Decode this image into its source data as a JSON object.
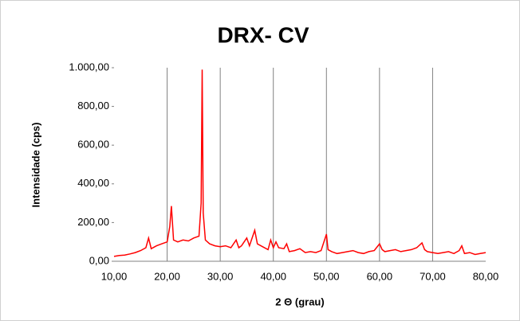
{
  "chart_data": {
    "type": "line",
    "title": "DRX- CV",
    "x_label": "2 Θ (grau)",
    "y_label": "Intensidade (cps)",
    "x": [
      10,
      11,
      12,
      13,
      14,
      15,
      16,
      16.5,
      17,
      18,
      19,
      20,
      20.5,
      20.8,
      21.2,
      22,
      23,
      24,
      25,
      26,
      26.4,
      26.6,
      26.8,
      27.2,
      28,
      29,
      30,
      31,
      32,
      33,
      33.5,
      34,
      35,
      35.5,
      36.5,
      37,
      38,
      39,
      39.5,
      40,
      40.5,
      41,
      42,
      42.5,
      43,
      44,
      45,
      46,
      47,
      48,
      49,
      50,
      50.3,
      51,
      52,
      53,
      54,
      55,
      56,
      57,
      58,
      59,
      60,
      60.5,
      61,
      62,
      63,
      64,
      65,
      66,
      67,
      68,
      68.5,
      69,
      70,
      71,
      72,
      73,
      74,
      75,
      75.5,
      76,
      77,
      78,
      79,
      80
    ],
    "series": [
      {
        "name": "DRX- CV",
        "color": "#ff0000",
        "values": [
          25,
          30,
          32,
          38,
          45,
          55,
          70,
          120,
          65,
          80,
          90,
          100,
          180,
          285,
          110,
          100,
          110,
          105,
          120,
          130,
          300,
          990,
          250,
          110,
          90,
          80,
          75,
          80,
          70,
          110,
          70,
          80,
          120,
          80,
          160,
          90,
          75,
          60,
          110,
          70,
          100,
          70,
          65,
          90,
          50,
          55,
          65,
          45,
          50,
          45,
          55,
          140,
          60,
          50,
          40,
          45,
          50,
          55,
          45,
          40,
          50,
          55,
          90,
          60,
          50,
          55,
          60,
          50,
          55,
          60,
          70,
          95,
          60,
          50,
          45,
          40,
          45,
          50,
          40,
          55,
          80,
          40,
          45,
          35,
          40,
          45
        ]
      }
    ],
    "xlim": [
      10,
      80
    ],
    "xticks": [
      {
        "value": 10,
        "label": "10,00"
      },
      {
        "value": 20,
        "label": "20,00"
      },
      {
        "value": 30,
        "label": "30,00"
      },
      {
        "value": 40,
        "label": "40,00"
      },
      {
        "value": 50,
        "label": "50,00"
      },
      {
        "value": 60,
        "label": "60,00"
      },
      {
        "value": 70,
        "label": "70,00"
      },
      {
        "value": 80,
        "label": "80,00"
      }
    ],
    "ylim": [
      0,
      1000
    ],
    "yticks": [
      {
        "value": 0,
        "label": "0,00"
      },
      {
        "value": 200,
        "label": "200,00"
      },
      {
        "value": 400,
        "label": "400,00"
      },
      {
        "value": 600,
        "label": "600,00"
      },
      {
        "value": 800,
        "label": "800,00"
      },
      {
        "value": 1000,
        "label": "1.000,00"
      }
    ],
    "grid": "x"
  }
}
